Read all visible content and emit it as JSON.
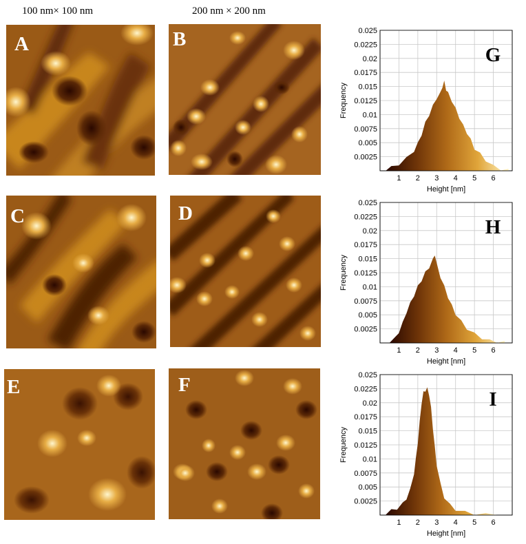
{
  "column_titles": [
    "100 nm× 100 nm",
    "200 nm × 200 nm"
  ],
  "afm_panels": [
    {
      "letter": "A",
      "letter_color": "#ffffff"
    },
    {
      "letter": "B",
      "letter_color": "#ffffff"
    },
    {
      "letter": "C",
      "letter_color": "#ffffff"
    },
    {
      "letter": "D",
      "letter_color": "#ffffff"
    },
    {
      "letter": "E",
      "letter_color": "#ffffff"
    },
    {
      "letter": "F",
      "letter_color": "#ffffff"
    }
  ],
  "colormap": [
    "#2a0800",
    "#6e3408",
    "#b06a18",
    "#e0a53a",
    "#fff2c0"
  ],
  "chart_data": [
    {
      "type": "area",
      "panel_label": "G",
      "xlabel": "Height [nm]",
      "ylabel": "Frequency",
      "xlim": [
        0,
        7
      ],
      "ylim": [
        0,
        0.025
      ],
      "xticks": [
        1,
        2,
        3,
        4,
        5,
        6
      ],
      "yticks": [
        0.0025,
        0.005,
        0.0075,
        0.01,
        0.0125,
        0.015,
        0.0175,
        0.02,
        0.0225,
        0.025
      ],
      "ytick_labels": [
        "0.0025",
        "0.005",
        "0.0075",
        "0.01",
        "0.0125",
        "0.015",
        "0.0175",
        "0.02",
        "0.0225",
        "0.025"
      ],
      "grid": true,
      "x": [
        0.3,
        0.6,
        1.0,
        1.4,
        1.8,
        2.0,
        2.2,
        2.4,
        2.6,
        2.8,
        3.0,
        3.2,
        3.3,
        3.4,
        3.5,
        3.6,
        3.8,
        4.0,
        4.2,
        4.4,
        4.6,
        4.8,
        5.0,
        5.3,
        5.6,
        6.0,
        6.4,
        6.8
      ],
      "y": [
        0.0002,
        0.0006,
        0.0012,
        0.0022,
        0.0036,
        0.0048,
        0.0065,
        0.0085,
        0.01,
        0.0115,
        0.013,
        0.0138,
        0.015,
        0.0158,
        0.0145,
        0.0138,
        0.0125,
        0.011,
        0.0095,
        0.008,
        0.0068,
        0.0055,
        0.004,
        0.003,
        0.0019,
        0.0008,
        0.0003,
        0.0001
      ]
    },
    {
      "type": "area",
      "panel_label": "H",
      "xlabel": "Height [nm]",
      "ylabel": "Frequency",
      "xlim": [
        0,
        7
      ],
      "ylim": [
        0,
        0.025
      ],
      "xticks": [
        1,
        2,
        3,
        4,
        5,
        6
      ],
      "yticks": [
        0.0025,
        0.005,
        0.0075,
        0.01,
        0.0125,
        0.015,
        0.0175,
        0.02,
        0.0225,
        0.025
      ],
      "ytick_labels": [
        "0.0025",
        "0.005",
        "0.0075",
        "0.01",
        "0.0125",
        "0.015",
        "0.0175",
        "0.02",
        "0.0225",
        "0.025"
      ],
      "grid": true,
      "x": [
        0.5,
        0.8,
        1.0,
        1.2,
        1.4,
        1.6,
        1.8,
        2.0,
        2.2,
        2.4,
        2.6,
        2.8,
        2.9,
        3.0,
        3.2,
        3.4,
        3.6,
        3.8,
        4.0,
        4.3,
        4.6,
        5.0,
        5.4,
        5.8,
        6.2,
        6.6
      ],
      "y": [
        0.0002,
        0.0008,
        0.002,
        0.0035,
        0.0055,
        0.007,
        0.0085,
        0.01,
        0.0112,
        0.0125,
        0.0135,
        0.0148,
        0.0158,
        0.014,
        0.0118,
        0.01,
        0.0082,
        0.0066,
        0.0052,
        0.0038,
        0.0026,
        0.0016,
        0.0009,
        0.0004,
        0.0002,
        0.0001
      ]
    },
    {
      "type": "area",
      "panel_label": "I",
      "xlabel": "Height [nm]",
      "ylabel": "Frequency",
      "xlim": [
        0,
        7
      ],
      "ylim": [
        0,
        0.025
      ],
      "xticks": [
        1,
        2,
        3,
        4,
        5,
        6
      ],
      "yticks": [
        0.0025,
        0.005,
        0.0075,
        0.01,
        0.0125,
        0.015,
        0.0175,
        0.02,
        0.0225,
        0.025
      ],
      "ytick_labels": [
        "0.0025",
        "0.005",
        "0.0075",
        "0.01",
        "0.0125",
        "0.015",
        "0.0175",
        "0.02",
        "0.0225",
        "0.025"
      ],
      "grid": true,
      "x": [
        0.3,
        0.6,
        0.9,
        1.2,
        1.4,
        1.6,
        1.8,
        1.9,
        2.0,
        2.1,
        2.2,
        2.3,
        2.4,
        2.5,
        2.6,
        2.7,
        2.8,
        2.9,
        3.0,
        3.2,
        3.4,
        3.7,
        4.0,
        4.5,
        5.0,
        5.6,
        6.2
      ],
      "y": [
        0.0003,
        0.0008,
        0.0012,
        0.002,
        0.003,
        0.0045,
        0.0075,
        0.01,
        0.013,
        0.0165,
        0.02,
        0.0218,
        0.0222,
        0.0225,
        0.0215,
        0.019,
        0.0155,
        0.012,
        0.009,
        0.0055,
        0.0032,
        0.0018,
        0.001,
        0.0005,
        0.0002,
        0.0001,
        0.0
      ]
    }
  ]
}
